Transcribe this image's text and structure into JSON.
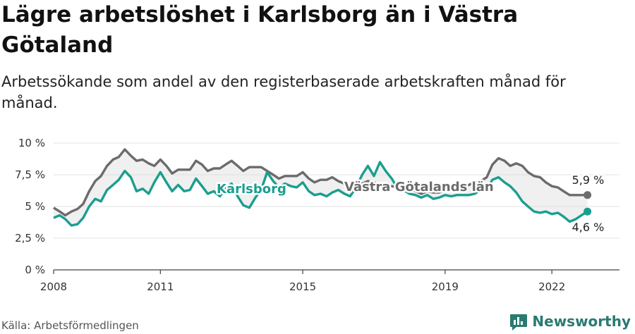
{
  "title": "Lägre arbetslöshet i Karlsborg än i Västra Götaland",
  "subtitle": "Arbetssökande som andel av den registerbaserade arbetskraften månad för månad.",
  "source": "Källa: Arbetsförmedlingen",
  "brand": "Newsworthy",
  "colors": {
    "karlsborg": "#1a9e8f",
    "lan": "#6b6b6b",
    "fill": "#dedede",
    "grid": "#e3e3e3"
  },
  "chart_data": {
    "type": "line",
    "xlim": [
      2008,
      2023.9
    ],
    "ylim": [
      0,
      10
    ],
    "yticks": [
      0,
      2.5,
      5,
      7.5,
      10
    ],
    "ytick_labels": [
      "0 %",
      "2,5 %",
      "5 %",
      "7,5 %",
      "10 %"
    ],
    "xticks": [
      2008,
      2011,
      2015,
      2019,
      2022
    ],
    "xtick_labels": [
      "2008",
      "2011",
      "2015",
      "2019",
      "2022"
    ],
    "series": [
      {
        "name": "Västra Götalands län",
        "label": "Västra Götalands län",
        "end_label": "5,9 %",
        "points": [
          [
            2008.0,
            4.9
          ],
          [
            2008.17,
            4.6
          ],
          [
            2008.33,
            4.3
          ],
          [
            2008.5,
            4.6
          ],
          [
            2008.67,
            4.8
          ],
          [
            2008.83,
            5.2
          ],
          [
            2009.0,
            6.2
          ],
          [
            2009.17,
            7.0
          ],
          [
            2009.33,
            7.4
          ],
          [
            2009.5,
            8.2
          ],
          [
            2009.67,
            8.7
          ],
          [
            2009.83,
            8.9
          ],
          [
            2010.0,
            9.5
          ],
          [
            2010.17,
            9.0
          ],
          [
            2010.33,
            8.6
          ],
          [
            2010.5,
            8.7
          ],
          [
            2010.67,
            8.4
          ],
          [
            2010.83,
            8.2
          ],
          [
            2011.0,
            8.7
          ],
          [
            2011.17,
            8.2
          ],
          [
            2011.33,
            7.6
          ],
          [
            2011.5,
            7.9
          ],
          [
            2011.67,
            7.9
          ],
          [
            2011.83,
            7.9
          ],
          [
            2012.0,
            8.6
          ],
          [
            2012.17,
            8.3
          ],
          [
            2012.33,
            7.8
          ],
          [
            2012.5,
            8.0
          ],
          [
            2012.67,
            8.0
          ],
          [
            2012.83,
            8.3
          ],
          [
            2013.0,
            8.6
          ],
          [
            2013.17,
            8.2
          ],
          [
            2013.33,
            7.8
          ],
          [
            2013.5,
            8.1
          ],
          [
            2013.67,
            8.1
          ],
          [
            2013.83,
            8.1
          ],
          [
            2014.0,
            7.8
          ],
          [
            2014.17,
            7.5
          ],
          [
            2014.33,
            7.2
          ],
          [
            2014.5,
            7.4
          ],
          [
            2014.67,
            7.4
          ],
          [
            2014.83,
            7.4
          ],
          [
            2015.0,
            7.7
          ],
          [
            2015.17,
            7.2
          ],
          [
            2015.33,
            6.9
          ],
          [
            2015.5,
            7.1
          ],
          [
            2015.67,
            7.1
          ],
          [
            2015.83,
            7.3
          ],
          [
            2016.0,
            7.0
          ],
          [
            2016.17,
            6.8
          ],
          [
            2016.33,
            6.6
          ],
          [
            2016.5,
            6.7
          ],
          [
            2016.67,
            6.8
          ],
          [
            2016.83,
            7.0
          ],
          [
            2017.0,
            6.9
          ],
          [
            2017.17,
            6.7
          ],
          [
            2017.33,
            6.5
          ],
          [
            2017.5,
            6.6
          ],
          [
            2017.67,
            6.5
          ],
          [
            2017.83,
            6.6
          ],
          [
            2018.0,
            6.5
          ],
          [
            2018.17,
            6.2
          ],
          [
            2018.33,
            6.0
          ],
          [
            2018.5,
            6.2
          ],
          [
            2018.67,
            6.1
          ],
          [
            2018.83,
            6.1
          ],
          [
            2019.0,
            6.3
          ],
          [
            2019.17,
            6.4
          ],
          [
            2019.33,
            6.5
          ],
          [
            2019.5,
            6.6
          ],
          [
            2019.67,
            6.7
          ],
          [
            2019.83,
            6.9
          ],
          [
            2020.0,
            7.0
          ],
          [
            2020.17,
            7.3
          ],
          [
            2020.33,
            8.3
          ],
          [
            2020.5,
            8.8
          ],
          [
            2020.67,
            8.6
          ],
          [
            2020.83,
            8.2
          ],
          [
            2021.0,
            8.4
          ],
          [
            2021.17,
            8.2
          ],
          [
            2021.33,
            7.7
          ],
          [
            2021.5,
            7.4
          ],
          [
            2021.67,
            7.3
          ],
          [
            2021.83,
            6.9
          ],
          [
            2022.0,
            6.6
          ],
          [
            2022.17,
            6.5
          ],
          [
            2022.33,
            6.2
          ],
          [
            2022.5,
            5.9
          ],
          [
            2022.67,
            5.9
          ],
          [
            2022.83,
            5.9
          ],
          [
            2023.0,
            5.9
          ]
        ]
      },
      {
        "name": "Karlsborg",
        "label": "Karlsborg",
        "end_label": "4,6 %",
        "points": [
          [
            2008.0,
            4.1
          ],
          [
            2008.17,
            4.3
          ],
          [
            2008.33,
            4.0
          ],
          [
            2008.5,
            3.5
          ],
          [
            2008.67,
            3.6
          ],
          [
            2008.83,
            4.1
          ],
          [
            2009.0,
            5.0
          ],
          [
            2009.17,
            5.6
          ],
          [
            2009.33,
            5.4
          ],
          [
            2009.5,
            6.3
          ],
          [
            2009.67,
            6.7
          ],
          [
            2009.83,
            7.1
          ],
          [
            2010.0,
            7.8
          ],
          [
            2010.17,
            7.3
          ],
          [
            2010.33,
            6.2
          ],
          [
            2010.5,
            6.4
          ],
          [
            2010.67,
            6.0
          ],
          [
            2010.83,
            6.9
          ],
          [
            2011.0,
            7.7
          ],
          [
            2011.17,
            6.9
          ],
          [
            2011.33,
            6.2
          ],
          [
            2011.5,
            6.7
          ],
          [
            2011.67,
            6.2
          ],
          [
            2011.83,
            6.3
          ],
          [
            2012.0,
            7.2
          ],
          [
            2012.17,
            6.6
          ],
          [
            2012.33,
            6.0
          ],
          [
            2012.5,
            6.2
          ],
          [
            2012.67,
            5.8
          ],
          [
            2012.83,
            6.4
          ],
          [
            2013.0,
            6.8
          ],
          [
            2013.17,
            5.8
          ],
          [
            2013.33,
            5.1
          ],
          [
            2013.5,
            4.9
          ],
          [
            2013.67,
            5.7
          ],
          [
            2013.83,
            6.3
          ],
          [
            2014.0,
            7.7
          ],
          [
            2014.17,
            7.0
          ],
          [
            2014.33,
            6.5
          ],
          [
            2014.5,
            6.8
          ],
          [
            2014.67,
            6.6
          ],
          [
            2014.83,
            6.5
          ],
          [
            2015.0,
            6.9
          ],
          [
            2015.17,
            6.2
          ],
          [
            2015.33,
            5.9
          ],
          [
            2015.5,
            6.0
          ],
          [
            2015.67,
            5.8
          ],
          [
            2015.83,
            6.1
          ],
          [
            2016.0,
            6.3
          ],
          [
            2016.17,
            6.0
          ],
          [
            2016.33,
            5.8
          ],
          [
            2016.5,
            6.5
          ],
          [
            2016.67,
            7.5
          ],
          [
            2016.83,
            8.2
          ],
          [
            2017.0,
            7.4
          ],
          [
            2017.17,
            8.5
          ],
          [
            2017.33,
            7.8
          ],
          [
            2017.5,
            7.2
          ],
          [
            2017.67,
            6.4
          ],
          [
            2017.83,
            6.3
          ],
          [
            2018.0,
            6.0
          ],
          [
            2018.17,
            5.9
          ],
          [
            2018.33,
            5.7
          ],
          [
            2018.5,
            5.9
          ],
          [
            2018.67,
            5.6
          ],
          [
            2018.83,
            5.7
          ],
          [
            2019.0,
            5.9
          ],
          [
            2019.17,
            5.8
          ],
          [
            2019.33,
            5.9
          ],
          [
            2019.5,
            5.9
          ],
          [
            2019.67,
            5.9
          ],
          [
            2019.83,
            6.0
          ],
          [
            2020.0,
            6.3
          ],
          [
            2020.17,
            6.4
          ],
          [
            2020.33,
            7.1
          ],
          [
            2020.5,
            7.3
          ],
          [
            2020.67,
            6.9
          ],
          [
            2020.83,
            6.6
          ],
          [
            2021.0,
            6.1
          ],
          [
            2021.17,
            5.4
          ],
          [
            2021.33,
            5.0
          ],
          [
            2021.5,
            4.6
          ],
          [
            2021.67,
            4.5
          ],
          [
            2021.83,
            4.6
          ],
          [
            2022.0,
            4.4
          ],
          [
            2022.17,
            4.5
          ],
          [
            2022.33,
            4.2
          ],
          [
            2022.5,
            3.8
          ],
          [
            2022.67,
            4.0
          ],
          [
            2022.83,
            4.3
          ],
          [
            2023.0,
            4.6
          ]
        ]
      }
    ]
  }
}
